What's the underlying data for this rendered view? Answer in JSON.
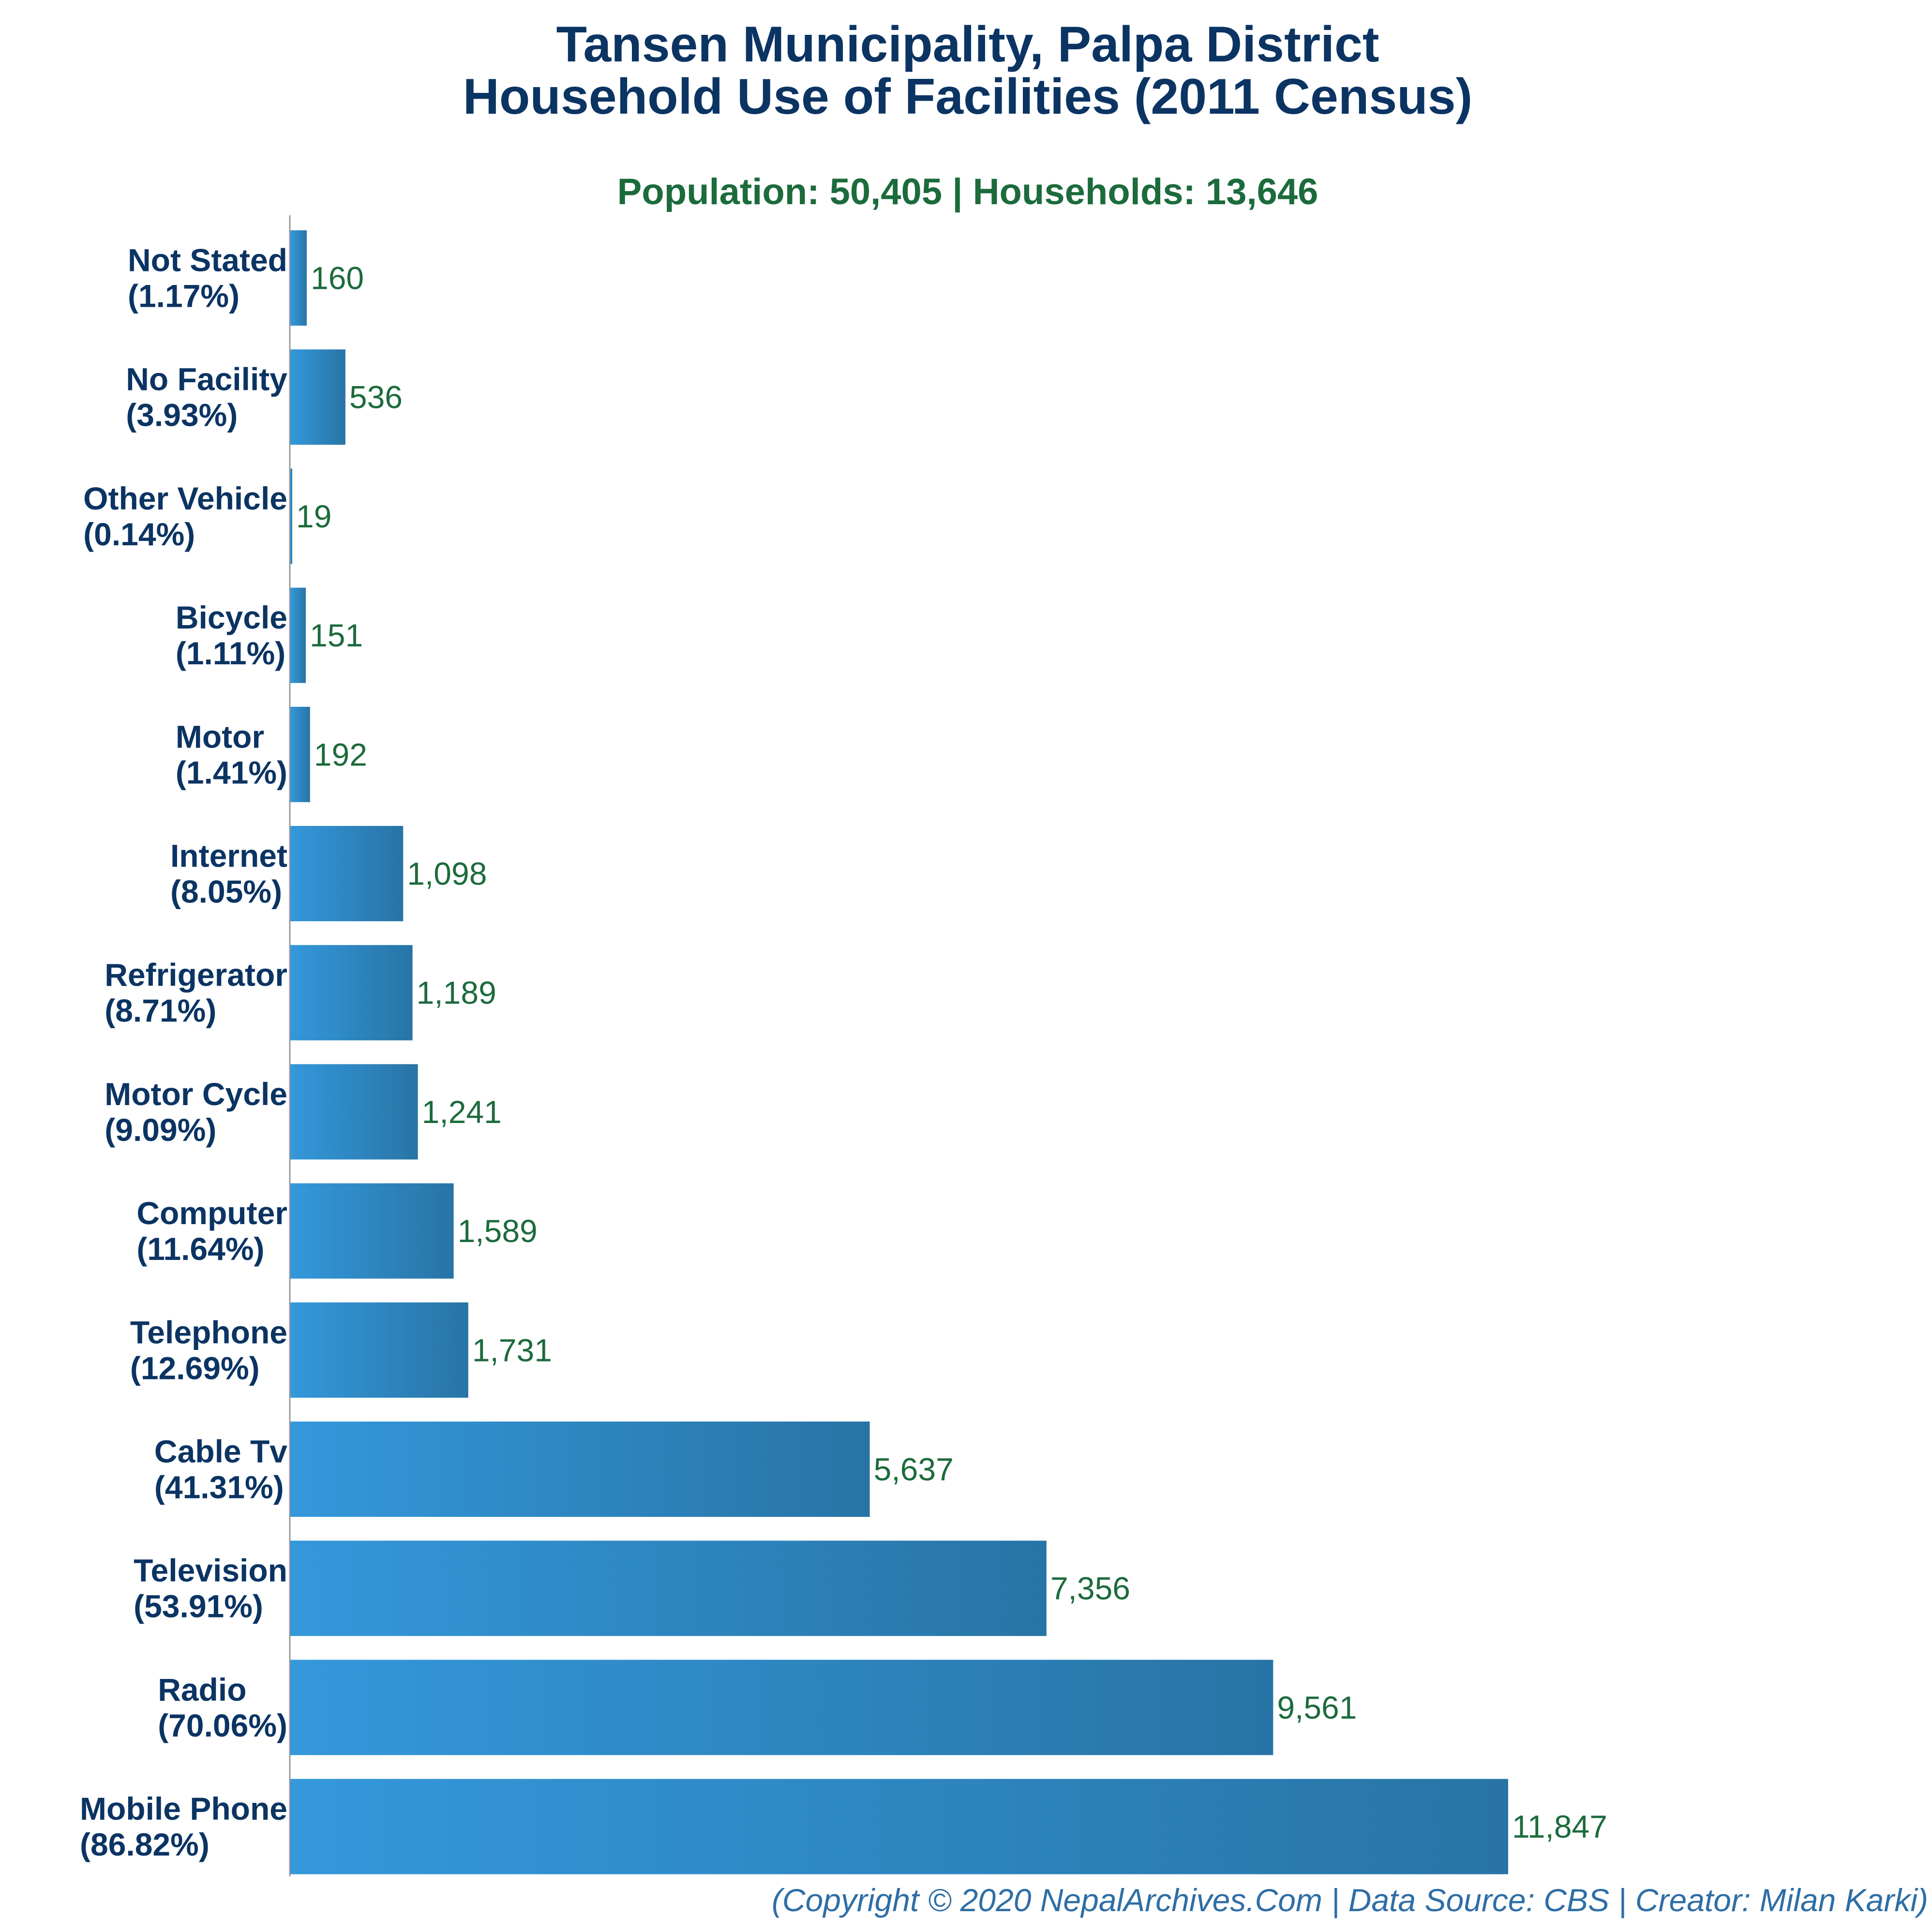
{
  "colors": {
    "title": "#0b3463",
    "subtitle": "#1c6b3c",
    "category_label": "#0b3463",
    "value_label": "#1c6b3c",
    "footer": "#2e6ea6",
    "bar_gradient_start": "#3498db",
    "bar_gradient_end": "#2874a6",
    "axis_line": "#9a9a9a"
  },
  "footer": "(Copyright © 2020 NepalArchives.Com | Data Source: CBS | Creator: Milan Karki)",
  "chart_data": {
    "type": "bar",
    "orientation": "horizontal",
    "title": [
      "Tansen Municipality, Palpa District",
      "Household Use of Facilities (2011 Census)"
    ],
    "subtitle": "Population: 50,405 | Households: 13,646",
    "categories": [
      {
        "name": "Not Stated",
        "pct": "(1.17%)"
      },
      {
        "name": "No Facility",
        "pct": "(3.93%)"
      },
      {
        "name": "Other Vehicle",
        "pct": "(0.14%)"
      },
      {
        "name": "Bicycle",
        "pct": "(1.11%)"
      },
      {
        "name": "Motor",
        "pct": "(1.41%)"
      },
      {
        "name": "Internet",
        "pct": "(8.05%)"
      },
      {
        "name": "Refrigerator",
        "pct": "(8.71%)"
      },
      {
        "name": "Motor Cycle",
        "pct": "(9.09%)"
      },
      {
        "name": "Computer",
        "pct": "(11.64%)"
      },
      {
        "name": "Telephone",
        "pct": "(12.69%)"
      },
      {
        "name": "Cable Tv",
        "pct": "(41.31%)"
      },
      {
        "name": "Television",
        "pct": "(53.91%)"
      },
      {
        "name": "Radio",
        "pct": "(70.06%)"
      },
      {
        "name": "Mobile Phone",
        "pct": "(86.82%)"
      }
    ],
    "values": [
      160,
      536,
      19,
      151,
      192,
      1098,
      1189,
      1241,
      1589,
      1731,
      5637,
      7356,
      9561,
      11847
    ],
    "value_labels": [
      "160",
      "536",
      "19",
      "151",
      "192",
      "1,098",
      "1,189",
      "1,241",
      "1,589",
      "1,731",
      "5,637",
      "7,356",
      "9,561",
      "11,847"
    ],
    "xlim": [
      0,
      11847
    ],
    "xlabel": "",
    "ylabel": "",
    "grid": false,
    "legend": "none"
  }
}
